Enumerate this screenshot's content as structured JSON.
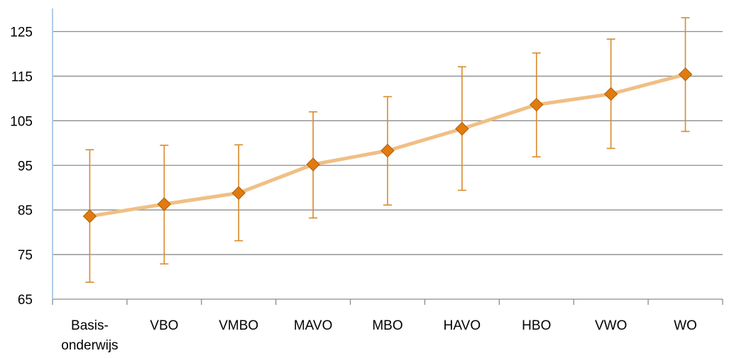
{
  "chart_data": {
    "type": "line",
    "title": "",
    "xlabel": "",
    "ylabel": "",
    "categories": [
      [
        "Basis-",
        "onderwijs"
      ],
      [
        "VBO"
      ],
      [
        "VMBO"
      ],
      [
        "MAVO"
      ],
      [
        "MBO"
      ],
      [
        "HAVO"
      ],
      [
        "HBO"
      ],
      [
        "VWO"
      ],
      [
        "WO"
      ]
    ],
    "series": [
      {
        "values": [
          83.6,
          86.3,
          88.8,
          95.2,
          98.3,
          103.2,
          108.6,
          111.0,
          115.4
        ],
        "error_low": [
          68.8,
          72.9,
          78.1,
          83.2,
          86.1,
          89.4,
          96.9,
          98.8,
          102.6
        ],
        "error_high": [
          98.5,
          99.5,
          99.6,
          107.0,
          110.4,
          117.1,
          120.2,
          123.3,
          128.1
        ]
      }
    ],
    "ylim": [
      65,
      130
    ],
    "yticks": [
      65,
      75,
      85,
      95,
      105,
      115,
      125
    ],
    "grid": true,
    "legend": "none",
    "colors": {
      "line": "#f0bf84",
      "marker": "#e07b0f",
      "marker_edge": "#b05e08",
      "error_bar": "#d98a2c",
      "gridline": "#8c8c8c",
      "y_axis": "#aecbe6",
      "x_axis": "#8c8c8c"
    }
  }
}
